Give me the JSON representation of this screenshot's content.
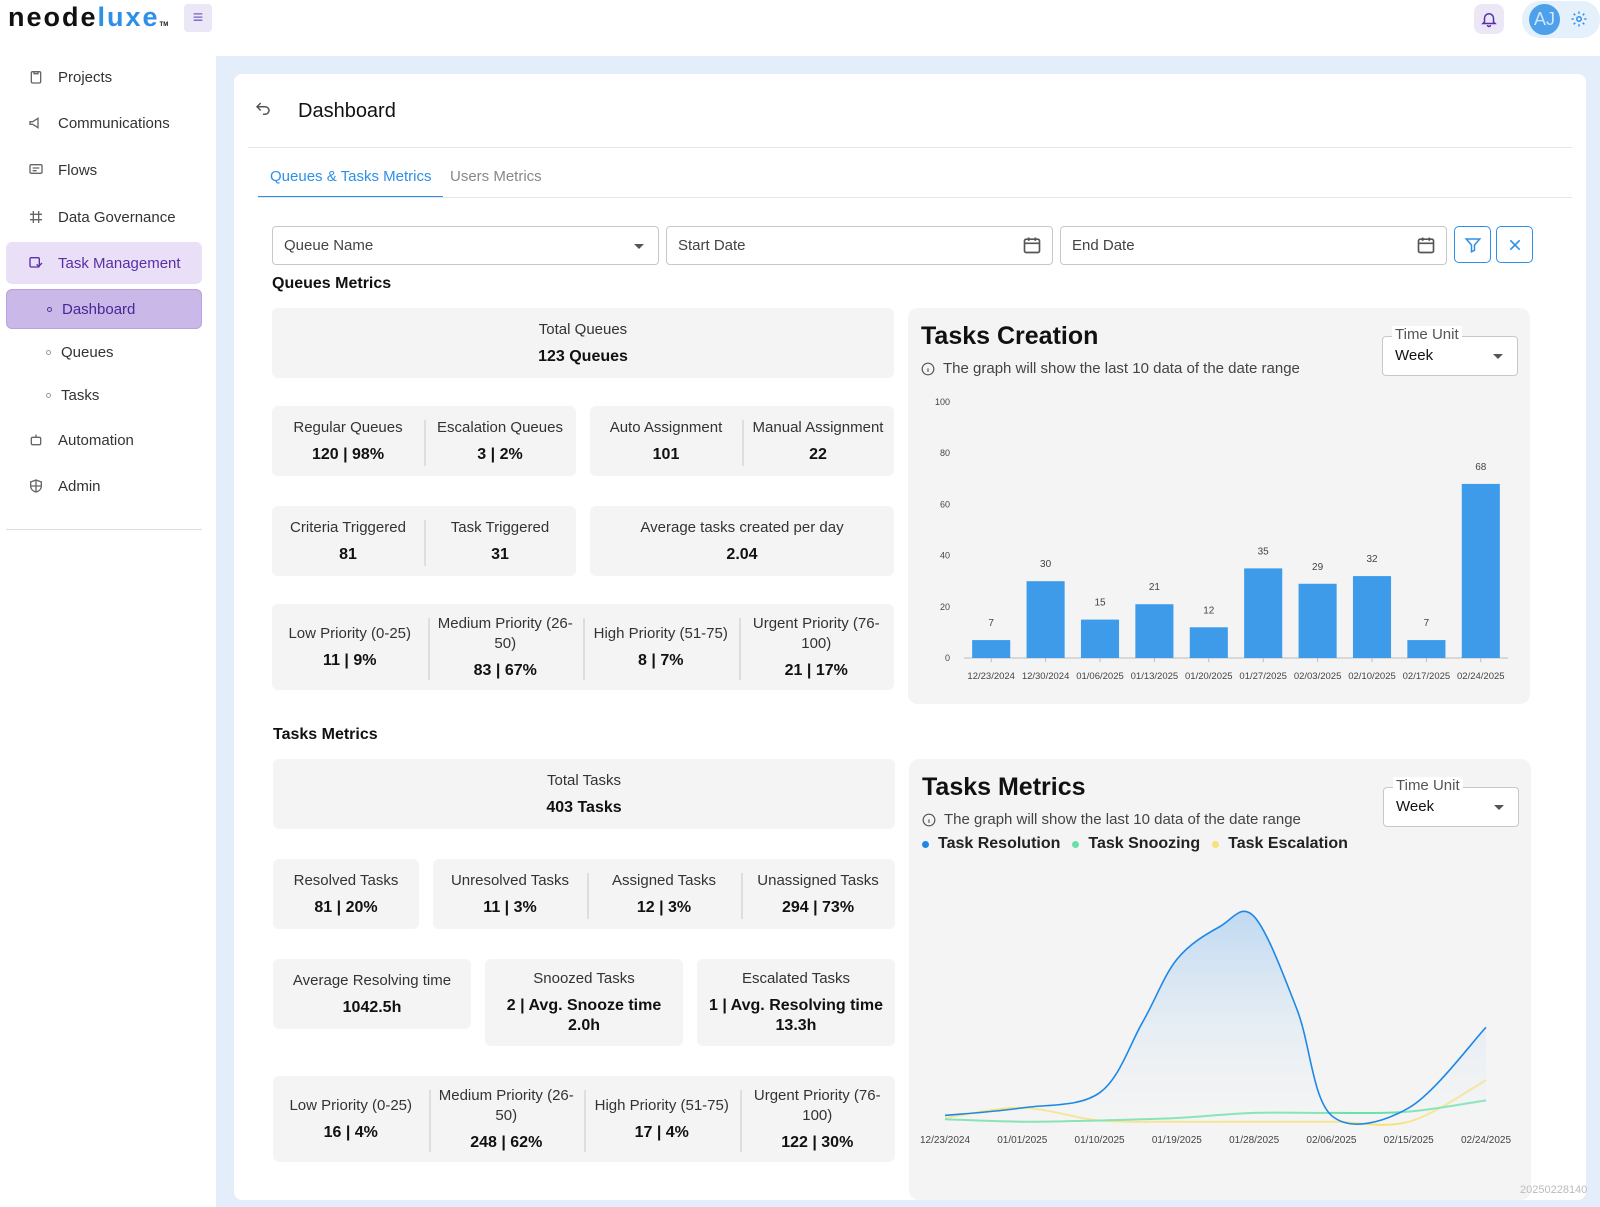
{
  "app": {
    "logo_text": "neodeluxe",
    "logo_tm": "TM",
    "user_initials": "AJ"
  },
  "sidebar": {
    "items": [
      {
        "label": "Projects"
      },
      {
        "label": "Communications"
      },
      {
        "label": "Flows"
      },
      {
        "label": "Data Governance"
      },
      {
        "label": "Task Management"
      },
      {
        "label": "Automation"
      },
      {
        "label": "Admin"
      }
    ],
    "sub_items": [
      {
        "label": "Dashboard"
      },
      {
        "label": "Queues"
      },
      {
        "label": "Tasks"
      }
    ]
  },
  "page": {
    "title": "Dashboard"
  },
  "tabs": [
    {
      "label": "Queues & Tasks Metrics"
    },
    {
      "label": "Users Metrics"
    }
  ],
  "filters": {
    "queue_name": "Queue Name",
    "start_date": "Start Date",
    "end_date": "End Date"
  },
  "queues_metrics": {
    "title": "Queues Metrics",
    "total": {
      "label": "Total Queues",
      "value": "123 Queues"
    },
    "regular": {
      "label": "Regular Queues",
      "value": "120 | 98%"
    },
    "escalation": {
      "label": "Escalation Queues",
      "value": "3 | 2%"
    },
    "auto_assignment": {
      "label": "Auto Assignment",
      "value": "101"
    },
    "manual_assignment": {
      "label": "Manual Assignment",
      "value": "22"
    },
    "criteria_triggered": {
      "label": "Criteria Triggered",
      "value": "81"
    },
    "task_triggered": {
      "label": "Task Triggered",
      "value": "31"
    },
    "avg_created": {
      "label": "Average tasks created per day",
      "value": "2.04"
    },
    "priority": [
      {
        "label": "Low Priority (0-25)",
        "value": "11 | 9%"
      },
      {
        "label": "Medium Priority (26-50)",
        "value": "83 | 67%"
      },
      {
        "label": "High Priority (51-75)",
        "value": "8 | 7%"
      },
      {
        "label": "Urgent Priority (76-100)",
        "value": "21 | 17%"
      }
    ]
  },
  "tasks_metrics": {
    "title": "Tasks Metrics",
    "total": {
      "label": "Total Tasks",
      "value": "403 Tasks"
    },
    "resolved": {
      "label": "Resolved Tasks",
      "value": "81 | 20%"
    },
    "unresolved": {
      "label": "Unresolved Tasks",
      "value": "11 | 3%"
    },
    "assigned": {
      "label": "Assigned Tasks",
      "value": "12 | 3%"
    },
    "unassigned": {
      "label": "Unassigned Tasks",
      "value": "294 | 73%"
    },
    "avg_resolving": {
      "label": "Average Resolving time",
      "value": "1042.5h"
    },
    "snoozed": {
      "label": "Snoozed Tasks",
      "value": "2 | Avg. Snooze time 2.0h"
    },
    "escalated": {
      "label": "Escalated Tasks",
      "value": "1 | Avg. Resolving time 13.3h"
    },
    "priority": [
      {
        "label": "Low Priority (0-25)",
        "value": "16 | 4%"
      },
      {
        "label": "Medium Priority (26-50)",
        "value": "248 | 62%"
      },
      {
        "label": "High Priority (51-75)",
        "value": "17 | 4%"
      },
      {
        "label": "Urgent Priority (76-100)",
        "value": "122 | 30%"
      }
    ]
  },
  "tasks_creation_card": {
    "title": "Tasks Creation",
    "note": "The graph will show the last 10 data of the date range",
    "time_unit_label": "Time Unit",
    "time_unit_value": "Week"
  },
  "tasks_metrics_card": {
    "title": "Tasks Metrics",
    "note": "The graph will show the last 10 data of the date range",
    "time_unit_label": "Time Unit",
    "time_unit_value": "Week",
    "legend": [
      {
        "name": "Task Resolution",
        "color": "#1e88e5"
      },
      {
        "name": "Task Snoozing",
        "color": "#69e0a8"
      },
      {
        "name": "Task Escalation",
        "color": "#f7e27a"
      }
    ]
  },
  "chart_data": [
    {
      "type": "bar",
      "title": "Tasks Creation",
      "categories": [
        "12/23/2024",
        "12/30/2024",
        "01/06/2025",
        "01/13/2025",
        "01/20/2025",
        "01/27/2025",
        "02/03/2025",
        "02/10/2025",
        "02/17/2025",
        "02/24/2025"
      ],
      "values": [
        7,
        30,
        15,
        21,
        12,
        35,
        29,
        32,
        7,
        68
      ],
      "ylim": [
        0,
        100
      ],
      "yticks": [
        0,
        20,
        40,
        60,
        80,
        100
      ],
      "color": "#3d9bea",
      "data_labels": true,
      "grid": false
    },
    {
      "type": "area",
      "title": "Tasks Metrics",
      "x_ticks": [
        "12/23/2024",
        "01/01/2025",
        "01/10/2025",
        "01/19/2025",
        "01/28/2025",
        "02/06/2025",
        "02/15/2025",
        "02/24/2025"
      ],
      "series": [
        {
          "name": "Task Resolution",
          "color": "#1e88e5",
          "x": [
            "12/23/2024",
            "01/01/2025",
            "01/10/2025",
            "01/15/2025",
            "01/19/2025",
            "01/24/2025",
            "01/28/2025",
            "02/02/2025",
            "02/06/2025",
            "02/15/2025",
            "02/24/2025"
          ],
          "values": [
            3,
            6,
            12,
            40,
            65,
            78,
            82,
            45,
            3,
            6,
            38
          ]
        },
        {
          "name": "Task Snoozing",
          "color": "#69e0a8",
          "x": [
            "12/23/2024",
            "01/01/2025",
            "01/10/2025",
            "01/19/2025",
            "01/28/2025",
            "02/06/2025",
            "02/15/2025",
            "02/24/2025"
          ],
          "values": [
            1.5,
            0.5,
            1,
            2,
            4,
            4,
            4.5,
            9
          ]
        },
        {
          "name": "Task Escalation",
          "color": "#f7e27a",
          "x": [
            "12/23/2024",
            "01/01/2025",
            "01/10/2025",
            "01/19/2025",
            "01/28/2025",
            "02/06/2025",
            "02/15/2025",
            "02/24/2025"
          ],
          "values": [
            2,
            6,
            1,
            0.5,
            0.5,
            0.5,
            0.5,
            17
          ]
        }
      ],
      "grid": false
    }
  ],
  "footer": {
    "build_id": "20250228140"
  }
}
